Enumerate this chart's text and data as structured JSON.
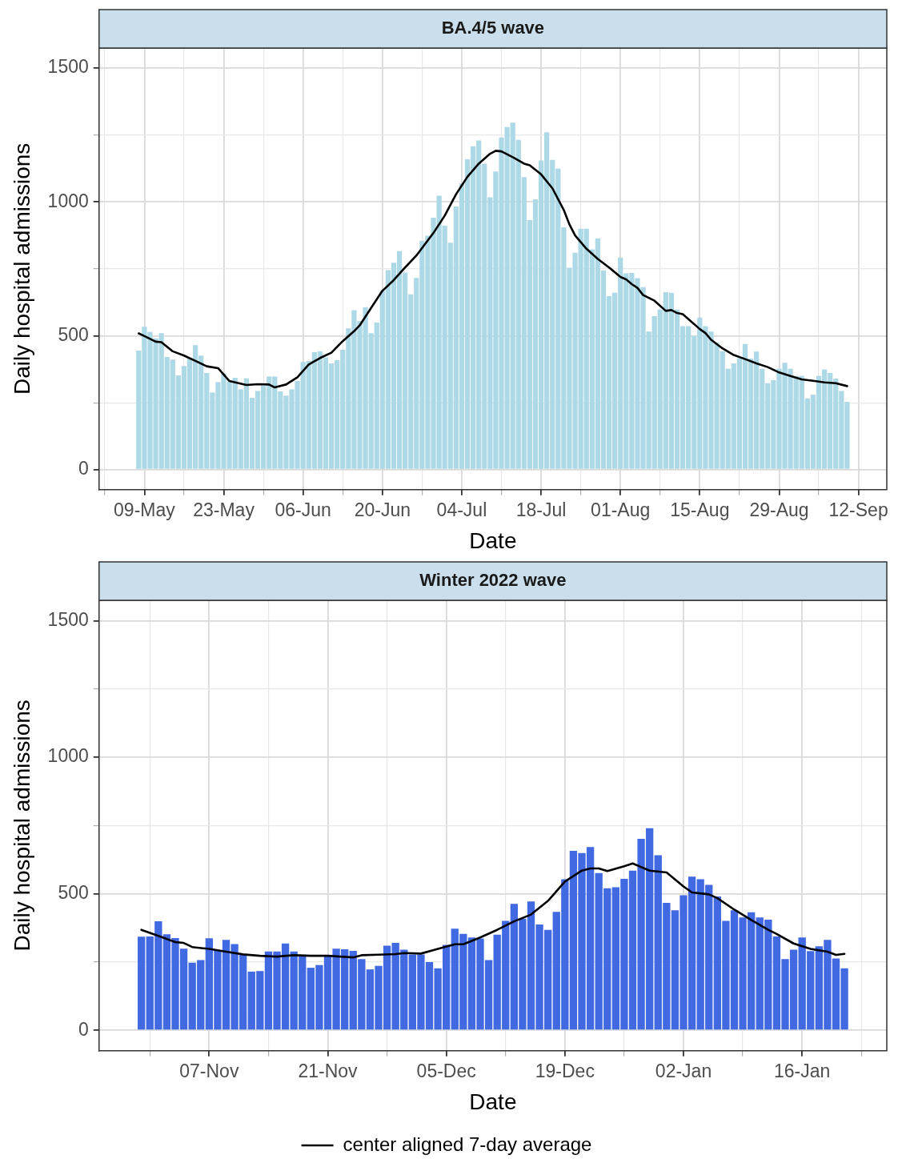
{
  "chart_data": [
    {
      "type": "bar",
      "title": "BA.4/5 wave",
      "xlabel": "Date",
      "ylabel": "Daily hospital admissions",
      "grid": true,
      "xlim": [
        "2022-05-01",
        "2022-09-17"
      ],
      "xticks": [
        {
          "value": "2022-05-02",
          "label": null
        },
        {
          "value": "2022-05-09",
          "label": "09-May"
        },
        {
          "value": "2022-05-16",
          "label": null
        },
        {
          "value": "2022-05-23",
          "label": "23-May"
        },
        {
          "value": "2022-05-30",
          "label": null
        },
        {
          "value": "2022-06-06",
          "label": "06-Jun"
        },
        {
          "value": "2022-06-13",
          "label": null
        },
        {
          "value": "2022-06-20",
          "label": "20-Jun"
        },
        {
          "value": "2022-06-27",
          "label": null
        },
        {
          "value": "2022-07-04",
          "label": "04-Jul"
        },
        {
          "value": "2022-07-11",
          "label": null
        },
        {
          "value": "2022-07-18",
          "label": "18-Jul"
        },
        {
          "value": "2022-07-25",
          "label": null
        },
        {
          "value": "2022-08-01",
          "label": "01-Aug"
        },
        {
          "value": "2022-08-08",
          "label": null
        },
        {
          "value": "2022-08-15",
          "label": "15-Aug"
        },
        {
          "value": "2022-08-22",
          "label": null
        },
        {
          "value": "2022-08-29",
          "label": "29-Aug"
        },
        {
          "value": "2022-09-05",
          "label": null
        },
        {
          "value": "2022-09-12",
          "label": "12-Sep"
        }
      ],
      "ylim": [
        -75,
        1575
      ],
      "yticks": [
        0,
        {
          "value": 250,
          "label": null
        },
        500,
        {
          "value": 750,
          "label": null
        },
        1000,
        {
          "value": 1250,
          "label": null
        },
        1500
      ],
      "x": [
        "2022-05-08",
        "2022-05-09",
        "2022-05-10",
        "2022-05-11",
        "2022-05-12",
        "2022-05-13",
        "2022-05-14",
        "2022-05-15",
        "2022-05-16",
        "2022-05-17",
        "2022-05-18",
        "2022-05-19",
        "2022-05-20",
        "2022-05-21",
        "2022-05-22",
        "2022-05-23",
        "2022-05-24",
        "2022-05-25",
        "2022-05-26",
        "2022-05-27",
        "2022-05-28",
        "2022-05-29",
        "2022-05-30",
        "2022-05-31",
        "2022-06-01",
        "2022-06-02",
        "2022-06-03",
        "2022-06-04",
        "2022-06-05",
        "2022-06-06",
        "2022-06-07",
        "2022-06-08",
        "2022-06-09",
        "2022-06-10",
        "2022-06-11",
        "2022-06-12",
        "2022-06-13",
        "2022-06-14",
        "2022-06-15",
        "2022-06-16",
        "2022-06-17",
        "2022-06-18",
        "2022-06-19",
        "2022-06-20",
        "2022-06-21",
        "2022-06-22",
        "2022-06-23",
        "2022-06-24",
        "2022-06-25",
        "2022-06-26",
        "2022-06-27",
        "2022-06-28",
        "2022-06-29",
        "2022-06-30",
        "2022-07-01",
        "2022-07-02",
        "2022-07-03",
        "2022-07-04",
        "2022-07-05",
        "2022-07-06",
        "2022-07-07",
        "2022-07-08",
        "2022-07-09",
        "2022-07-10",
        "2022-07-11",
        "2022-07-12",
        "2022-07-13",
        "2022-07-14",
        "2022-07-15",
        "2022-07-16",
        "2022-07-17",
        "2022-07-18",
        "2022-07-19",
        "2022-07-20",
        "2022-07-21",
        "2022-07-22",
        "2022-07-23",
        "2022-07-24",
        "2022-07-25",
        "2022-07-26",
        "2022-07-27",
        "2022-07-28",
        "2022-07-29",
        "2022-07-30",
        "2022-07-31",
        "2022-08-01",
        "2022-08-02",
        "2022-08-03",
        "2022-08-04",
        "2022-08-05",
        "2022-08-06",
        "2022-08-07",
        "2022-08-08",
        "2022-08-09",
        "2022-08-10",
        "2022-08-11",
        "2022-08-12",
        "2022-08-13",
        "2022-08-14",
        "2022-08-15",
        "2022-08-16",
        "2022-08-17",
        "2022-08-18",
        "2022-08-19",
        "2022-08-20",
        "2022-08-21",
        "2022-08-22",
        "2022-08-23",
        "2022-08-24",
        "2022-08-25",
        "2022-08-26",
        "2022-08-27",
        "2022-08-28",
        "2022-08-29",
        "2022-08-30",
        "2022-08-31",
        "2022-09-01",
        "2022-09-02",
        "2022-09-03",
        "2022-09-04",
        "2022-09-05",
        "2022-09-06",
        "2022-09-07",
        "2022-09-08",
        "2022-09-09",
        "2022-09-10"
      ],
      "series": [
        {
          "color": "#add8e6",
          "values": [
            445,
            534,
            514,
            490,
            510,
            421,
            411,
            352,
            387,
            417,
            465,
            426,
            361,
            288,
            327,
            358,
            329,
            343,
            300,
            341,
            268,
            294,
            314,
            348,
            348,
            292,
            276,
            300,
            331,
            402,
            406,
            439,
            442,
            419,
            397,
            409,
            448,
            528,
            596,
            555,
            606,
            510,
            549,
            668,
            745,
            773,
            816,
            736,
            655,
            716,
            855,
            874,
            941,
            1023,
            911,
            848,
            983,
            1070,
            1159,
            1208,
            1230,
            1142,
            1017,
            1114,
            1241,
            1280,
            1296,
            1232,
            1093,
            932,
            1010,
            1155,
            1260,
            1157,
            1124,
            905,
            754,
            810,
            900,
            900,
            823,
            863,
            744,
            648,
            661,
            792,
            733,
            735,
            715,
            682,
            516,
            573,
            598,
            663,
            661,
            598,
            536,
            536,
            499,
            568,
            536,
            516,
            474,
            442,
            377,
            397,
            416,
            469,
            415,
            441,
            377,
            323,
            334,
            377,
            399,
            377,
            350,
            350,
            266,
            280,
            350,
            374,
            361,
            340,
            294,
            253
          ]
        },
        {
          "type": "line",
          "color": "#000000",
          "x": [
            "2022-05-08",
            "2022-05-09",
            "2022-05-11",
            "2022-05-12",
            "2022-05-14",
            "2022-05-16",
            "2022-05-18",
            "2022-05-20",
            "2022-05-22",
            "2022-05-24",
            "2022-05-27",
            "2022-05-29",
            "2022-05-31",
            "2022-06-01",
            "2022-06-03",
            "2022-06-05",
            "2022-06-07",
            "2022-06-09",
            "2022-06-11",
            "2022-06-13",
            "2022-06-15",
            "2022-06-16",
            "2022-06-18",
            "2022-06-20",
            "2022-06-22",
            "2022-06-24",
            "2022-06-26",
            "2022-06-29",
            "2022-07-01",
            "2022-07-03",
            "2022-07-05",
            "2022-07-07",
            "2022-07-09",
            "2022-07-10",
            "2022-07-11",
            "2022-07-13",
            "2022-07-15",
            "2022-07-16",
            "2022-07-18",
            "2022-07-20",
            "2022-07-22",
            "2022-07-23",
            "2022-07-24",
            "2022-07-26",
            "2022-07-28",
            "2022-07-30",
            "2022-08-01",
            "2022-08-02",
            "2022-08-03",
            "2022-08-04",
            "2022-08-05",
            "2022-08-07",
            "2022-08-09",
            "2022-08-10",
            "2022-08-11",
            "2022-08-12",
            "2022-08-15",
            "2022-08-16",
            "2022-08-17",
            "2022-08-19",
            "2022-08-21",
            "2022-08-23",
            "2022-08-25",
            "2022-08-27",
            "2022-08-29",
            "2022-08-31",
            "2022-09-02",
            "2022-09-04",
            "2022-09-06",
            "2022-09-08",
            "2022-09-10"
          ],
          "values": [
            509,
            499,
            478,
            476,
            442,
            426,
            406,
            386,
            379,
            331,
            316,
            319,
            318,
            307,
            318,
            345,
            393,
            417,
            437,
            480,
            517,
            539,
            604,
            668,
            708,
            755,
            800,
            884,
            949,
            1029,
            1094,
            1143,
            1180,
            1191,
            1189,
            1167,
            1143,
            1137,
            1103,
            1051,
            970,
            916,
            875,
            825,
            787,
            755,
            720,
            711,
            693,
            679,
            652,
            631,
            593,
            596,
            585,
            581,
            525,
            510,
            485,
            453,
            428,
            413,
            397,
            383,
            363,
            350,
            337,
            332,
            326,
            323,
            312
          ]
        }
      ]
    },
    {
      "type": "bar",
      "title": "Winter 2022 wave",
      "xlabel": "Date",
      "ylabel": "Daily hospital admissions",
      "grid": true,
      "legend": "bottom",
      "xlim": [
        "2022-10-25",
        "2023-01-26"
      ],
      "xticks": [
        {
          "value": "2022-10-31",
          "label": null
        },
        {
          "value": "2022-11-07",
          "label": "07-Nov"
        },
        {
          "value": "2022-11-14",
          "label": null
        },
        {
          "value": "2022-11-21",
          "label": "21-Nov"
        },
        {
          "value": "2022-11-28",
          "label": null
        },
        {
          "value": "2022-12-05",
          "label": "05-Dec"
        },
        {
          "value": "2022-12-12",
          "label": null
        },
        {
          "value": "2022-12-19",
          "label": "19-Dec"
        },
        {
          "value": "2022-12-26",
          "label": null
        },
        {
          "value": "2023-01-02",
          "label": "02-Jan"
        },
        {
          "value": "2023-01-09",
          "label": null
        },
        {
          "value": "2023-01-16",
          "label": "16-Jan"
        },
        {
          "value": "2023-01-23",
          "label": null
        }
      ],
      "ylim": [
        -75,
        1575
      ],
      "yticks": [
        0,
        {
          "value": 250,
          "label": null
        },
        500,
        {
          "value": 750,
          "label": null
        },
        1000,
        {
          "value": 1250,
          "label": null
        },
        1500
      ],
      "x": [
        "2022-10-30",
        "2022-10-31",
        "2022-11-01",
        "2022-11-02",
        "2022-11-03",
        "2022-11-04",
        "2022-11-05",
        "2022-11-06",
        "2022-11-07",
        "2022-11-08",
        "2022-11-09",
        "2022-11-10",
        "2022-11-11",
        "2022-11-12",
        "2022-11-13",
        "2022-11-14",
        "2022-11-15",
        "2022-11-16",
        "2022-11-17",
        "2022-11-18",
        "2022-11-19",
        "2022-11-20",
        "2022-11-21",
        "2022-11-22",
        "2022-11-23",
        "2022-11-24",
        "2022-11-25",
        "2022-11-26",
        "2022-11-27",
        "2022-11-28",
        "2022-11-29",
        "2022-11-30",
        "2022-12-01",
        "2022-12-02",
        "2022-12-03",
        "2022-12-04",
        "2022-12-05",
        "2022-12-06",
        "2022-12-07",
        "2022-12-08",
        "2022-12-09",
        "2022-12-10",
        "2022-12-11",
        "2022-12-12",
        "2022-12-13",
        "2022-12-14",
        "2022-12-15",
        "2022-12-16",
        "2022-12-17",
        "2022-12-18",
        "2022-12-19",
        "2022-12-20",
        "2022-12-21",
        "2022-12-22",
        "2022-12-23",
        "2022-12-24",
        "2022-12-25",
        "2022-12-26",
        "2022-12-27",
        "2022-12-28",
        "2022-12-29",
        "2022-12-30",
        "2022-12-31",
        "2023-01-01",
        "2023-01-02",
        "2023-01-03",
        "2023-01-04",
        "2023-01-05",
        "2023-01-06",
        "2023-01-07",
        "2023-01-08",
        "2023-01-09",
        "2023-01-10",
        "2023-01-11",
        "2023-01-12",
        "2023-01-13",
        "2023-01-14",
        "2023-01-15",
        "2023-01-16",
        "2023-01-17",
        "2023-01-18",
        "2023-01-19",
        "2023-01-20",
        "2023-01-21"
      ],
      "series": [
        {
          "color": "#4169e1",
          "values": [
            343,
            344,
            399,
            352,
            338,
            299,
            248,
            257,
            337,
            293,
            331,
            316,
            278,
            215,
            217,
            289,
            289,
            318,
            289,
            275,
            229,
            239,
            270,
            299,
            297,
            291,
            261,
            223,
            236,
            310,
            320,
            295,
            278,
            278,
            250,
            227,
            313,
            372,
            353,
            340,
            336,
            257,
            350,
            401,
            463,
            409,
            472,
            388,
            368,
            434,
            553,
            657,
            649,
            671,
            576,
            520,
            524,
            555,
            585,
            701,
            740,
            641,
            467,
            440,
            495,
            563,
            553,
            533,
            490,
            401,
            440,
            413,
            432,
            413,
            405,
            344,
            261,
            295,
            340,
            290,
            308,
            331,
            263,
            227
          ]
        },
        {
          "type": "line",
          "name": "center aligned 7-day average",
          "color": "#000000",
          "x": [
            "2022-10-30",
            "2022-11-01",
            "2022-11-03",
            "2022-11-04",
            "2022-11-05",
            "2022-11-07",
            "2022-11-09",
            "2022-11-11",
            "2022-11-13",
            "2022-11-15",
            "2022-11-17",
            "2022-11-19",
            "2022-11-21",
            "2022-11-24",
            "2022-11-25",
            "2022-11-27",
            "2022-11-29",
            "2022-11-30",
            "2022-12-02",
            "2022-12-04",
            "2022-12-06",
            "2022-12-07",
            "2022-12-09",
            "2022-12-11",
            "2022-12-13",
            "2022-12-15",
            "2022-12-17",
            "2022-12-19",
            "2022-12-21",
            "2022-12-22",
            "2022-12-23",
            "2022-12-24",
            "2022-12-26",
            "2022-12-27",
            "2022-12-29",
            "2022-12-31",
            "2023-01-02",
            "2023-01-03",
            "2023-01-05",
            "2023-01-06",
            "2023-01-08",
            "2023-01-10",
            "2023-01-12",
            "2023-01-13",
            "2023-01-15",
            "2023-01-17",
            "2023-01-19",
            "2023-01-20",
            "2023-01-21"
          ],
          "values": [
            368,
            346,
            323,
            320,
            305,
            298,
            288,
            278,
            273,
            270,
            275,
            273,
            273,
            267,
            275,
            277,
            279,
            283,
            281,
            298,
            315,
            315,
            340,
            368,
            399,
            424,
            474,
            545,
            585,
            593,
            593,
            583,
            601,
            611,
            585,
            578,
            527,
            505,
            498,
            484,
            442,
            404,
            368,
            353,
            318,
            298,
            288,
            276,
            280
          ]
        }
      ]
    }
  ]
}
